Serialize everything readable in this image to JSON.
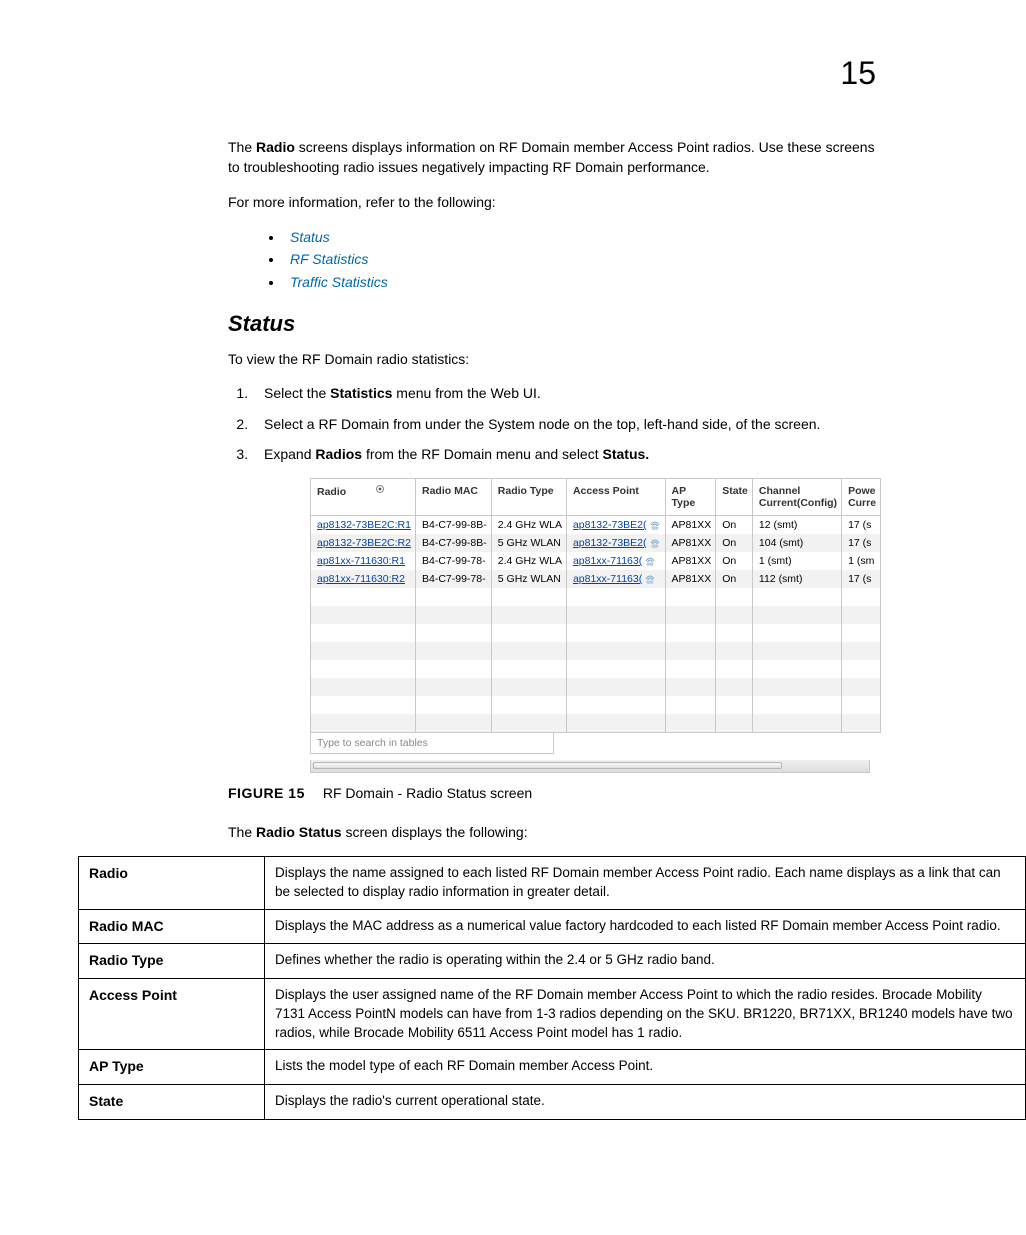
{
  "page_number": "15",
  "intro": {
    "text_before_bold": "The ",
    "bold": "Radio",
    "text_after_bold": " screens displays information on RF Domain member Access Point radios. Use these screens to troubleshooting radio issues negatively impacting RF Domain performance."
  },
  "more_info_lead": "For more information, refer to the following:",
  "links": [
    {
      "label": "Status"
    },
    {
      "label": "RF Statistics"
    },
    {
      "label": "Traffic Statistics"
    }
  ],
  "section_heading": "Status",
  "status_intro": "To view the RF Domain radio statistics:",
  "steps": [
    {
      "pre": "Select the ",
      "b1": "Statistics",
      "post": " menu from the Web UI."
    },
    {
      "pre": "Select a RF Domain from under the System node on the top, left-hand side, of the screen.",
      "b1": "",
      "post": ""
    },
    {
      "pre": "Expand ",
      "b1": "Radios",
      "mid": " from the RF Domain menu and select ",
      "b2": "Status.",
      "post": ""
    }
  ],
  "figure": {
    "label": "FIGURE 15",
    "caption": "RF Domain - Radio Status screen",
    "columns": [
      "Radio",
      "Radio MAC",
      "Radio Type",
      "Access Point",
      "AP Type",
      "State",
      "Channel Current(Config)",
      "Powe Curre"
    ],
    "rows": [
      {
        "radio": "ap8132-73BE2C:R1",
        "mac": "B4-C7-99-8B-",
        "type": "2.4 GHz WLA",
        "ap": "ap8132-73BE2(",
        "aptype": "AP81XX",
        "state": "On",
        "chan": "12 (smt)",
        "pow": "17 (s"
      },
      {
        "radio": "ap8132-73BE2C:R2",
        "mac": "B4-C7-99-8B-",
        "type": "5 GHz WLAN",
        "ap": "ap8132-73BE2(",
        "aptype": "AP81XX",
        "state": "On",
        "chan": "104 (smt)",
        "pow": "17 (s"
      },
      {
        "radio": "ap81xx-711630:R1",
        "mac": "B4-C7-99-78-",
        "type": "2.4 GHz WLA",
        "ap": "ap81xx-71163(",
        "aptype": "AP81XX",
        "state": "On",
        "chan": "1 (smt)",
        "pow": "1 (sm"
      },
      {
        "radio": "ap81xx-711630:R2",
        "mac": "B4-C7-99-78-",
        "type": "5 GHz WLAN",
        "ap": "ap81xx-71163(",
        "aptype": "AP81XX",
        "state": "On",
        "chan": "112 (smt)",
        "pow": "17 (s"
      }
    ],
    "empty_rows": 8,
    "search_placeholder": "Type to search in tables"
  },
  "desc_intro": {
    "pre": "The ",
    "b": "Radio Status",
    "post": " screen displays the following:"
  },
  "desc_table": [
    {
      "term": "Radio",
      "def": "Displays the name assigned to each listed RF Domain member Access Point radio. Each name displays as a link that can be selected to display radio information in greater detail."
    },
    {
      "term": "Radio MAC",
      "def": "Displays the MAC address as a numerical value factory hardcoded to each listed RF Domain member Access Point radio."
    },
    {
      "term": "Radio Type",
      "def": "Defines whether the radio is operating within the 2.4 or 5 GHz radio band."
    },
    {
      "term": "Access Point",
      "def": "Displays the user assigned name of the RF Domain member Access Point to which the radio resides. Brocade Mobility 7131 Access PointN models can have from 1-3 radios depending on the SKU. BR1220, BR71XX, BR1240 models have two radios, while Brocade Mobility 6511 Access Point model has 1 radio."
    },
    {
      "term": "AP Type",
      "def": "Lists the model type of each RF Domain member Access Point."
    },
    {
      "term": "State",
      "def": "Displays the radio's current operational state."
    }
  ],
  "colors": {
    "link_blue": "#0066aa",
    "table_link_blue": "#0044aa",
    "grid_border": "#c8c8c8",
    "alt_row": "#f2f2f2"
  }
}
